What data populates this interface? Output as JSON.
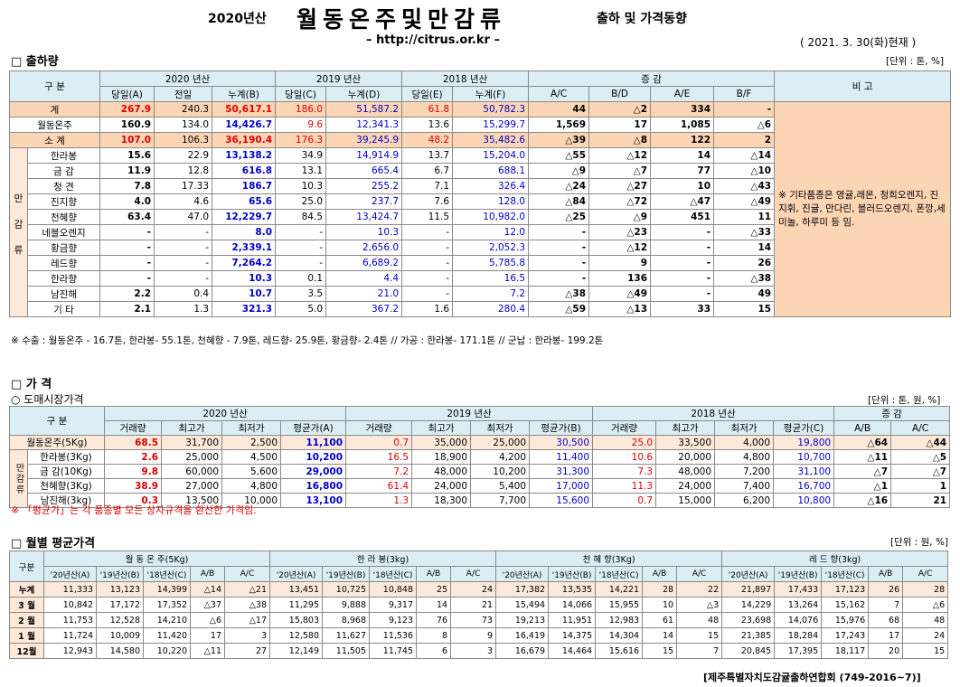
{
  "header": {
    "year": "2020년산",
    "title": "월동온주및만감류",
    "subtitle": "출하 및 가격동향",
    "url": "– http://citrus.or.kr –",
    "date": "( 2021. 3. 30(화)현재 )"
  },
  "shipments": {
    "title": "□ 출하량",
    "unit": "[단위 : 톤, %]",
    "head1": [
      "구 분",
      "2020 년산",
      "2019 년산",
      "2018 년산",
      "증 감",
      "비 고"
    ],
    "head2": [
      "당일(A)",
      "전일",
      "누계(B)",
      "당일(C)",
      "누계(D)",
      "당일(E)",
      "누계(F)",
      "A/C",
      "B/D",
      "A/E",
      "B/F"
    ],
    "rows": [
      [
        "계",
        "267.9",
        "240.3",
        "50,617.1",
        "186.0",
        "51,587.2",
        "61.8",
        "50,782.3",
        "44",
        "△2",
        "334",
        "-"
      ],
      [
        "월동온주",
        "160.9",
        "134.0",
        "14,426.7",
        "9.6",
        "12,341.3",
        "13.6",
        "15,299.7",
        "1,569",
        "17",
        "1,085",
        "△6"
      ],
      [
        "소 계",
        "107.0",
        "106.3",
        "36,190.4",
        "176.3",
        "39,245.9",
        "48.2",
        "35,482.6",
        "△39",
        "△8",
        "122",
        "2"
      ]
    ],
    "group_label": "만감류",
    "group_rows": [
      [
        "한라봉",
        "15.6",
        "22.9",
        "13,138.2",
        "34.9",
        "14,914.9",
        "13.7",
        "15,204.0",
        "△55",
        "△12",
        "14",
        "△14"
      ],
      [
        "금 감",
        "11.9",
        "12.8",
        "616.8",
        "13.1",
        "665.4",
        "6.7",
        "688.1",
        "△9",
        "△7",
        "77",
        "△10"
      ],
      [
        "청 견",
        "7.8",
        "17.33",
        "186.7",
        "10.3",
        "255.2",
        "7.1",
        "326.4",
        "△24",
        "△27",
        "10",
        "△43"
      ],
      [
        "진지향",
        "4.0",
        "4.6",
        "65.6",
        "25.0",
        "237.7",
        "7.6",
        "128.0",
        "△84",
        "△72",
        "△47",
        "△49"
      ],
      [
        "천혜향",
        "63.4",
        "47.0",
        "12,229.7",
        "84.5",
        "13,424.7",
        "11.5",
        "10,982.0",
        "△25",
        "△9",
        "451",
        "11"
      ],
      [
        "네블오렌지",
        "-",
        "-",
        "8.0",
        "-",
        "10.3",
        "-",
        "12.0",
        "-",
        "△23",
        "-",
        "△33"
      ],
      [
        "황금향",
        "-",
        "-",
        "2,339.1",
        "-",
        "2,656.0",
        "-",
        "2,052.3",
        "-",
        "△12",
        "-",
        "14"
      ],
      [
        "레드향",
        "-",
        "-",
        "7,264.2",
        "-",
        "6,689.2",
        "-",
        "5,785.8",
        "-",
        "9",
        "-",
        "26"
      ],
      [
        "한라향",
        "-",
        "-",
        "10.3",
        "0.1",
        "4.4",
        "-",
        "16.5",
        "-",
        "136",
        "-",
        "△38"
      ],
      [
        "남진해",
        "2.2",
        "0.4",
        "10.7",
        "3.5",
        "21.0",
        "-",
        "7.2",
        "△38",
        "△49",
        "-",
        "49"
      ],
      [
        "기 타",
        "2.1",
        "1.3",
        "321.3",
        "5.0",
        "367.2",
        "1.6",
        "280.4",
        "△59",
        "△13",
        "33",
        "15"
      ]
    ],
    "remark": "※ 기타품종은 영귤,레몬, 청희오렌지, 진지휘, 진귤, 만다린, 블러드오렌지, 폰깡,세미놀, 하루미 등 임.",
    "footnote": "※ 수출 : 월동온주 - 16.7톤, 한라봉- 55.1톤, 천혜향 - 7.9톤, 레드향- 25.9톤, 황금향- 2.4톤  // 가공 : 한라봉- 171.1톤 // 군납 : 한라봉- 199.2톤"
  },
  "prices": {
    "title": "□ 가   격",
    "subtitle": "○ 도매시장가격",
    "unit": "[단위 : 톤, 원, %]",
    "head1": [
      "구 분",
      "2020 년산",
      "2019 년산",
      "2018 년산",
      "증 감"
    ],
    "head2": [
      "거래량",
      "최고가",
      "최저가",
      "평균가(A)",
      "거래량",
      "최고가",
      "최저가",
      "평균가(B)",
      "거래량",
      "최고가",
      "최저가",
      "평균가(C)",
      "A/B",
      "A/C"
    ],
    "rows": [
      [
        "월동온주(5Kg)",
        "68.5",
        "31,700",
        "2,500",
        "11,100",
        "0.7",
        "35,000",
        "25,000",
        "30,500",
        "25.0",
        "33,500",
        "4,000",
        "19,800",
        "△64",
        "△44"
      ]
    ],
    "group_label": "만감류",
    "group_rows": [
      [
        "한라봉(3Kg)",
        "2.6",
        "25,000",
        "4,500",
        "10,200",
        "16.5",
        "18,900",
        "4,200",
        "11,400",
        "10.6",
        "20,000",
        "4,800",
        "10,700",
        "△11",
        "△5"
      ],
      [
        "금 감(10Kg)",
        "9.8",
        "60,000",
        "5,600",
        "29,000",
        "7.2",
        "48,000",
        "10,200",
        "31,300",
        "7.3",
        "48,000",
        "7,200",
        "31,100",
        "△7",
        "△7"
      ],
      [
        "천혜향(3Kg)",
        "38.9",
        "27,000",
        "4,800",
        "16,800",
        "61.4",
        "24,000",
        "5,400",
        "17,000",
        "11.3",
        "24,000",
        "7,400",
        "16,700",
        "△1",
        "1"
      ],
      [
        "남진해(3kg)",
        "0.3",
        "13,500",
        "10,000",
        "13,100",
        "1.3",
        "18,300",
        "7,700",
        "15,600",
        "0.7",
        "15,000",
        "6,200",
        "10,800",
        "△16",
        "21"
      ]
    ],
    "note": "※ 「평균가」는 각 품종별 모든 상자규격을 환산한 가격임."
  },
  "monthly": {
    "title": "□ 월별 평균가격",
    "unit": "[단위 : 원, %]",
    "head1": [
      "구분",
      "월 동 온 주(5Kg)",
      "한 라 봉(3kg)",
      "천 혜 향(3Kg)",
      "레 드 향(3kg)"
    ],
    "head2": [
      "'20년산(A)",
      "'19년산(B)",
      "'18년산(C)",
      "A/B",
      "A/C",
      "'20년산(A)",
      "'19년산(B)",
      "'18년산(C)",
      "A/B",
      "A/C",
      "'20년산(A)",
      "'19년산(B)",
      "'18년산(C)",
      "A/B",
      "A/C",
      "'20년산(A)",
      "'19년산(B)",
      "'18년산(C)",
      "A/B",
      "A/C"
    ],
    "rows": [
      [
        "누계",
        "11,333",
        "13,123",
        "14,399",
        "△14",
        "△21",
        "13,451",
        "10,725",
        "10,848",
        "25",
        "24",
        "17,382",
        "13,535",
        "14,221",
        "28",
        "22",
        "21,897",
        "17,433",
        "17,123",
        "26",
        "28"
      ],
      [
        "3 월",
        "10,842",
        "17,172",
        "17,352",
        "△37",
        "△38",
        "11,295",
        "9,888",
        "9,317",
        "14",
        "21",
        "15,494",
        "14,066",
        "15,955",
        "10",
        "△3",
        "14,229",
        "13,264",
        "15,162",
        "7",
        "△6"
      ],
      [
        "2 월",
        "11,753",
        "12,528",
        "14,210",
        "△6",
        "△17",
        "15,803",
        "8,968",
        "9,123",
        "76",
        "73",
        "19,213",
        "11,951",
        "12,983",
        "61",
        "48",
        "23,698",
        "14,076",
        "15,976",
        "68",
        "48"
      ],
      [
        "1 월",
        "11,724",
        "10,009",
        "11,420",
        "17",
        "3",
        "12,580",
        "11,627",
        "11,536",
        "8",
        "9",
        "16,419",
        "14,375",
        "14,304",
        "14",
        "15",
        "21,385",
        "18,284",
        "17,243",
        "17",
        "24"
      ],
      [
        "12월",
        "12,943",
        "14,580",
        "10,220",
        "△11",
        "27",
        "12,149",
        "11,505",
        "11,745",
        "6",
        "3",
        "16,679",
        "14,464",
        "15,616",
        "15",
        "7",
        "20,845",
        "17,395",
        "18,117",
        "20",
        "15"
      ]
    ],
    "footer": "[제주특별자치도감귤출하연합회 (749-2016~7)]"
  }
}
